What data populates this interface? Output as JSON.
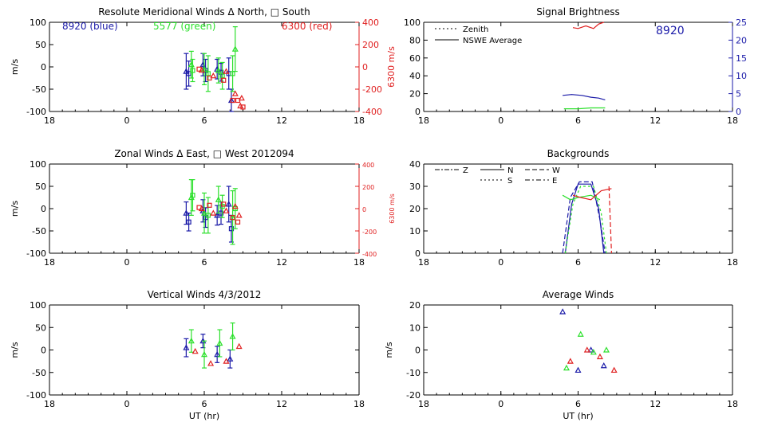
{
  "colors": {
    "b8920": "#1a1aa8",
    "g5577": "#2ce02c",
    "r6300": "#e02020",
    "axis": "#000000"
  },
  "labels": {
    "ms": "m/s",
    "ms6300": "6300 m/s",
    "ut": "UT (hr)",
    "leg_blue": "8920 (blue)",
    "leg_green": "5577 (green)",
    "leg_red": "6300 (red)",
    "site": "8920",
    "zenith": "Zenith",
    "nswe": "NSWE Average",
    "bg_z": "Z",
    "bg_n": "N",
    "bg_w": "W",
    "bg_s": "S",
    "bg_e": "E"
  },
  "chart_data": [
    {
      "id": "meridional",
      "type": "scatter",
      "title": "Resolute Meridional Winds Δ North, □ South",
      "ylabel": "m/s",
      "y2label": "6300 m/s",
      "xticks": [
        "18",
        "0",
        "6",
        "12",
        "18"
      ],
      "ylim": [
        -100,
        100
      ],
      "yticks": [
        -100,
        -50,
        0,
        50,
        100
      ],
      "y2lim": [
        -400,
        400
      ],
      "y2ticks": [
        -400,
        -200,
        0,
        200,
        400
      ],
      "series": [
        {
          "color": "blue",
          "points": [
            [
              4.6,
              -10,
              40,
              "tri"
            ],
            [
              4.8,
              -15,
              28,
              "sq"
            ],
            [
              5.9,
              5,
              25,
              "tri"
            ],
            [
              6.1,
              -8,
              25,
              "sq"
            ],
            [
              7.0,
              -5,
              22,
              "tri"
            ],
            [
              7.3,
              -12,
              20,
              "sq"
            ],
            [
              7.9,
              -15,
              35,
              "sq"
            ],
            [
              8.1,
              -75,
              25,
              "tri"
            ]
          ]
        },
        {
          "color": "green",
          "points": [
            [
              5.0,
              5,
              30,
              "tri"
            ],
            [
              5.1,
              -8,
              25,
              "sq"
            ],
            [
              6.0,
              -5,
              35,
              "tri"
            ],
            [
              6.3,
              -15,
              40,
              "sq"
            ],
            [
              7.1,
              -8,
              28,
              "tri"
            ],
            [
              7.4,
              -20,
              30,
              "sq"
            ],
            [
              8.2,
              -15,
              40,
              "sq"
            ],
            [
              8.4,
              40,
              50,
              "tri"
            ]
          ]
        },
        {
          "color": "red",
          "axis": "y2",
          "points": [
            [
              5.6,
              -20,
              "sq"
            ],
            [
              5.8,
              -30,
              "tri"
            ],
            [
              6.4,
              -100,
              "sq"
            ],
            [
              6.7,
              -80,
              "tri"
            ],
            [
              7.5,
              -120,
              "sq"
            ],
            [
              7.7,
              -40,
              "tri"
            ],
            [
              8.2,
              -300,
              "sq"
            ],
            [
              8.4,
              -240,
              "tri"
            ],
            [
              8.6,
              -300,
              "sq"
            ],
            [
              8.8,
              -350,
              "tri"
            ],
            [
              9.0,
              -360,
              "sq"
            ],
            [
              8.9,
              -280,
              "tri"
            ]
          ]
        }
      ]
    },
    {
      "id": "brightness",
      "type": "line",
      "title": "Signal Brightness",
      "xticks": [
        "18",
        "0",
        "6",
        "12",
        "18"
      ],
      "ylim": [
        0,
        100
      ],
      "yticks": [
        0,
        20,
        40,
        60,
        80,
        100
      ],
      "y2lim": [
        0,
        25
      ],
      "y2ticks": [
        0,
        5,
        10,
        15,
        20,
        25
      ],
      "series": [
        {
          "color": "red",
          "points": [
            [
              5.6,
              94
            ],
            [
              6.0,
              93
            ],
            [
              6.6,
              96
            ],
            [
              7.2,
              93
            ],
            [
              7.6,
              98
            ],
            [
              8.0,
              100
            ]
          ]
        },
        {
          "color": "blue",
          "points": [
            [
              4.8,
              18
            ],
            [
              5.5,
              19
            ],
            [
              6.3,
              18
            ],
            [
              7.0,
              16
            ],
            [
              7.6,
              15
            ],
            [
              8.1,
              13
            ]
          ]
        },
        {
          "color": "green",
          "points": [
            [
              4.9,
              3
            ],
            [
              6.0,
              3
            ],
            [
              7.0,
              4
            ],
            [
              8.1,
              4
            ]
          ]
        }
      ]
    },
    {
      "id": "zonal",
      "type": "scatter",
      "title": "Zonal Winds Δ East, □ West 2012094",
      "ylabel": "m/s",
      "y2label": "6300 m/s",
      "xticks": [
        "18",
        "0",
        "6",
        "12",
        "18"
      ],
      "ylim": [
        -100,
        100
      ],
      "yticks": [
        -100,
        -50,
        0,
        50,
        100
      ],
      "y2lim": [
        -400,
        400
      ],
      "y2ticks": [
        -400,
        -200,
        0,
        200,
        400
      ],
      "series": [
        {
          "color": "blue",
          "points": [
            [
              4.6,
              -10,
              25,
              "tri"
            ],
            [
              4.8,
              -30,
              20,
              "sq"
            ],
            [
              5.9,
              -5,
              25,
              "tri"
            ],
            [
              6.1,
              -20,
              22,
              "sq"
            ],
            [
              7.0,
              -15,
              22,
              "tri"
            ],
            [
              7.3,
              -10,
              25,
              "sq"
            ],
            [
              7.9,
              10,
              40,
              "tri"
            ],
            [
              8.1,
              -45,
              30,
              "sq"
            ]
          ]
        },
        {
          "color": "green",
          "points": [
            [
              5.0,
              25,
              40,
              "tri"
            ],
            [
              5.1,
              30,
              35,
              "sq"
            ],
            [
              6.0,
              -10,
              45,
              "tri"
            ],
            [
              6.3,
              -15,
              40,
              "sq"
            ],
            [
              7.1,
              20,
              30,
              "tri"
            ],
            [
              7.4,
              5,
              25,
              "sq"
            ],
            [
              8.2,
              -20,
              60,
              "tri"
            ],
            [
              8.4,
              0,
              45,
              "sq"
            ]
          ]
        },
        {
          "color": "red",
          "axis": "y2",
          "points": [
            [
              5.6,
              10,
              "sq"
            ],
            [
              5.8,
              0,
              "tri"
            ],
            [
              6.4,
              30,
              "sq"
            ],
            [
              6.7,
              -40,
              "tri"
            ],
            [
              7.5,
              40,
              "sq"
            ],
            [
              7.7,
              -20,
              "tri"
            ],
            [
              8.2,
              -80,
              "sq"
            ],
            [
              8.4,
              20,
              "tri"
            ],
            [
              8.6,
              -120,
              "sq"
            ],
            [
              8.7,
              -60,
              "tri"
            ]
          ]
        }
      ]
    },
    {
      "id": "backgrounds",
      "type": "line",
      "title": "Backgrounds",
      "xticks": [
        "18",
        "0",
        "6",
        "12",
        "18"
      ],
      "ylim": [
        0,
        40
      ],
      "yticks": [
        0,
        10,
        20,
        30,
        40
      ],
      "series": [
        {
          "color": "blue",
          "points": [
            [
              5.0,
              0
            ],
            [
              5.5,
              22
            ],
            [
              6.0,
              31
            ],
            [
              7.0,
              31
            ],
            [
              7.6,
              20
            ],
            [
              8.0,
              0
            ]
          ]
        },
        {
          "color": "blue",
          "points": [
            [
              4.8,
              0
            ],
            [
              5.4,
              25
            ],
            [
              6.1,
              32
            ],
            [
              7.1,
              32
            ],
            [
              7.7,
              15
            ],
            [
              8.1,
              0
            ]
          ]
        },
        {
          "color": "green",
          "points": [
            [
              4.8,
              26
            ],
            [
              5.4,
              24
            ],
            [
              6.0,
              25
            ],
            [
              7.0,
              26
            ],
            [
              7.7,
              24
            ]
          ]
        },
        {
          "color": "green",
          "points": [
            [
              5.0,
              0
            ],
            [
              5.6,
              22
            ],
            [
              6.2,
              30
            ],
            [
              7.2,
              30
            ],
            [
              7.8,
              18
            ],
            [
              8.2,
              0
            ]
          ]
        },
        {
          "color": "red",
          "points": [
            [
              5.6,
              26
            ],
            [
              6.2,
              25
            ],
            [
              7.0,
              24
            ],
            [
              7.8,
              28
            ],
            [
              8.6,
              29
            ]
          ]
        },
        {
          "color": "red",
          "points": [
            [
              8.4,
              30
            ],
            [
              8.5,
              15
            ],
            [
              8.6,
              0
            ]
          ]
        }
      ]
    },
    {
      "id": "vertical",
      "type": "scatter",
      "title": "Vertical Winds 4/3/2012",
      "ylabel": "m/s",
      "xlabel": "UT (hr)",
      "xticks": [
        "18",
        "0",
        "6",
        "12",
        "18"
      ],
      "ylim": [
        -100,
        100
      ],
      "yticks": [
        -100,
        -50,
        0,
        50,
        100
      ],
      "series": [
        {
          "color": "blue",
          "points": [
            [
              4.6,
              5,
              20,
              "tri"
            ],
            [
              5.9,
              20,
              15,
              "tri"
            ],
            [
              7.0,
              -10,
              18,
              "tri"
            ],
            [
              8.0,
              -20,
              20,
              "tri"
            ]
          ]
        },
        {
          "color": "green",
          "points": [
            [
              5.0,
              20,
              25,
              "tri"
            ],
            [
              6.0,
              -10,
              30,
              "tri"
            ],
            [
              7.2,
              15,
              30,
              "tri"
            ],
            [
              8.2,
              30,
              30,
              "tri"
            ]
          ]
        },
        {
          "color": "red",
          "points": [
            [
              5.3,
              -3,
              "tri"
            ],
            [
              6.5,
              -30,
              "tri"
            ],
            [
              7.7,
              -25,
              "tri"
            ],
            [
              8.7,
              8,
              "tri"
            ]
          ]
        }
      ]
    },
    {
      "id": "average",
      "type": "scatter",
      "title": "Average Winds",
      "ylabel": "m/s",
      "xlabel": "UT (hr)",
      "xticks": [
        "18",
        "0",
        "6",
        "12",
        "18"
      ],
      "ylim": [
        -20,
        20
      ],
      "yticks": [
        -20,
        -10,
        0,
        10,
        20
      ],
      "series": [
        {
          "color": "blue",
          "points": [
            [
              4.8,
              17,
              "tri"
            ],
            [
              6.0,
              -9,
              "tri"
            ],
            [
              7.0,
              0,
              "tri"
            ],
            [
              8.0,
              -7,
              "tri"
            ]
          ]
        },
        {
          "color": "green",
          "points": [
            [
              5.1,
              -8,
              "tri"
            ],
            [
              6.2,
              7,
              "tri"
            ],
            [
              7.2,
              -1,
              "tri"
            ],
            [
              8.2,
              0,
              "tri"
            ]
          ]
        },
        {
          "color": "red",
          "points": [
            [
              5.4,
              -5,
              "tri"
            ],
            [
              6.7,
              0,
              "tri"
            ],
            [
              7.7,
              -3,
              "tri"
            ],
            [
              8.8,
              -9,
              "tri"
            ]
          ]
        }
      ]
    }
  ]
}
